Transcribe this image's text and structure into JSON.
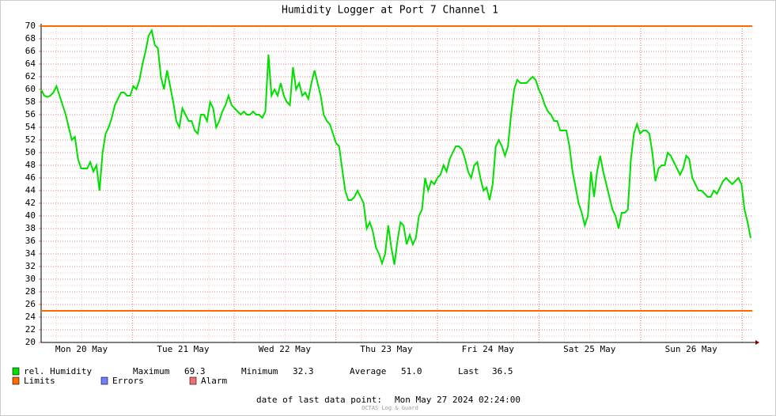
{
  "chart_data": {
    "type": "line",
    "title": "Humidity Logger at Port 7 Channel 1",
    "x_labels": [
      "Mon 20 May",
      "Tue 21 May",
      "Wed 22 May",
      "Thu 23 May",
      "Fri 24 May",
      "Sat 25 May",
      "Sun 26 May"
    ],
    "ylim": [
      20,
      70
    ],
    "yticks": [
      20,
      22,
      24,
      26,
      28,
      30,
      32,
      34,
      36,
      38,
      40,
      42,
      44,
      46,
      48,
      50,
      52,
      54,
      56,
      58,
      60,
      62,
      64,
      66,
      68,
      70
    ],
    "grid": true,
    "series": [
      {
        "name": "rel. Humidity",
        "color": "#00e000",
        "values": [
          60,
          59,
          58.8,
          59,
          59.5,
          60.5,
          59,
          57.5,
          56,
          54,
          52,
          52.5,
          49,
          47.5,
          47.5,
          47.5,
          48.5,
          47,
          48,
          44,
          50,
          53,
          54,
          55.5,
          57.5,
          58.5,
          59.5,
          59.5,
          59,
          59,
          60.5,
          60,
          61.5,
          64,
          66,
          68.5,
          69.3,
          67,
          66.5,
          62,
          60,
          63,
          60.5,
          58,
          55,
          54,
          57,
          56,
          55,
          55,
          53.5,
          53,
          56,
          56,
          55,
          58,
          57,
          54,
          55,
          56.5,
          57.5,
          59,
          57.5,
          57,
          56.5,
          56,
          56.5,
          56,
          56,
          56.5,
          56,
          56,
          55.5,
          56.5,
          65.5,
          59,
          60,
          59,
          61,
          59,
          58,
          57.5,
          63.5,
          60,
          61,
          59,
          59.5,
          58.5,
          61,
          63,
          61,
          59,
          56,
          55,
          54.5,
          53,
          51.5,
          51,
          47.5,
          44,
          42.5,
          42.5,
          43,
          44,
          43,
          42,
          38,
          39,
          37.5,
          35,
          34,
          32.5,
          34,
          38.5,
          35,
          32.3,
          36,
          39,
          38.5,
          35.5,
          37,
          35.5,
          36.5,
          40,
          41,
          46,
          44,
          45.5,
          45,
          46,
          46.5,
          48,
          47,
          49,
          50,
          51,
          51,
          50.5,
          49,
          47,
          46,
          48,
          48.5,
          46,
          44,
          44.5,
          42.5,
          45,
          51,
          52,
          51,
          49.5,
          51,
          56,
          60,
          61.5,
          61,
          61,
          61,
          61.5,
          62,
          61.5,
          60,
          59,
          57.5,
          56.5,
          56,
          55,
          55,
          53.5,
          53.5,
          53.5,
          51,
          47,
          44.5,
          42,
          40.5,
          38.5,
          40,
          47,
          43,
          47,
          49.5,
          47,
          45,
          43,
          41,
          40,
          38,
          40.5,
          40.5,
          41,
          49,
          53,
          54.5,
          53,
          53.5,
          53.5,
          53,
          50,
          45.5,
          47.5,
          48,
          48,
          50,
          49.5,
          48.5,
          47.5,
          46.5,
          47.5,
          49.5,
          49,
          46,
          45,
          44,
          44,
          43.5,
          43,
          43,
          44,
          43.5,
          44.5,
          45.5,
          46,
          45.5,
          45,
          45.5,
          46,
          45,
          41,
          39,
          36.5
        ]
      }
    ],
    "limits": {
      "name": "Limits",
      "color": "#ff6a00",
      "values": [
        70,
        25
      ]
    },
    "other_legend": [
      {
        "name": "Errors",
        "color": "#7080ff"
      },
      {
        "name": "Alarm",
        "color": "#f07070"
      }
    ],
    "stats": [
      {
        "label": "Maximum",
        "value": "69.3"
      },
      {
        "label": "Minimum",
        "value": "32.3"
      },
      {
        "label": "Average",
        "value": "51.0"
      },
      {
        "label": "Last",
        "value": "36.5"
      }
    ],
    "footer_label": "date of last data point:",
    "footer_value": "Mon May 27 2024 02:24:00",
    "credit": "OCTAS Log & Guard"
  }
}
